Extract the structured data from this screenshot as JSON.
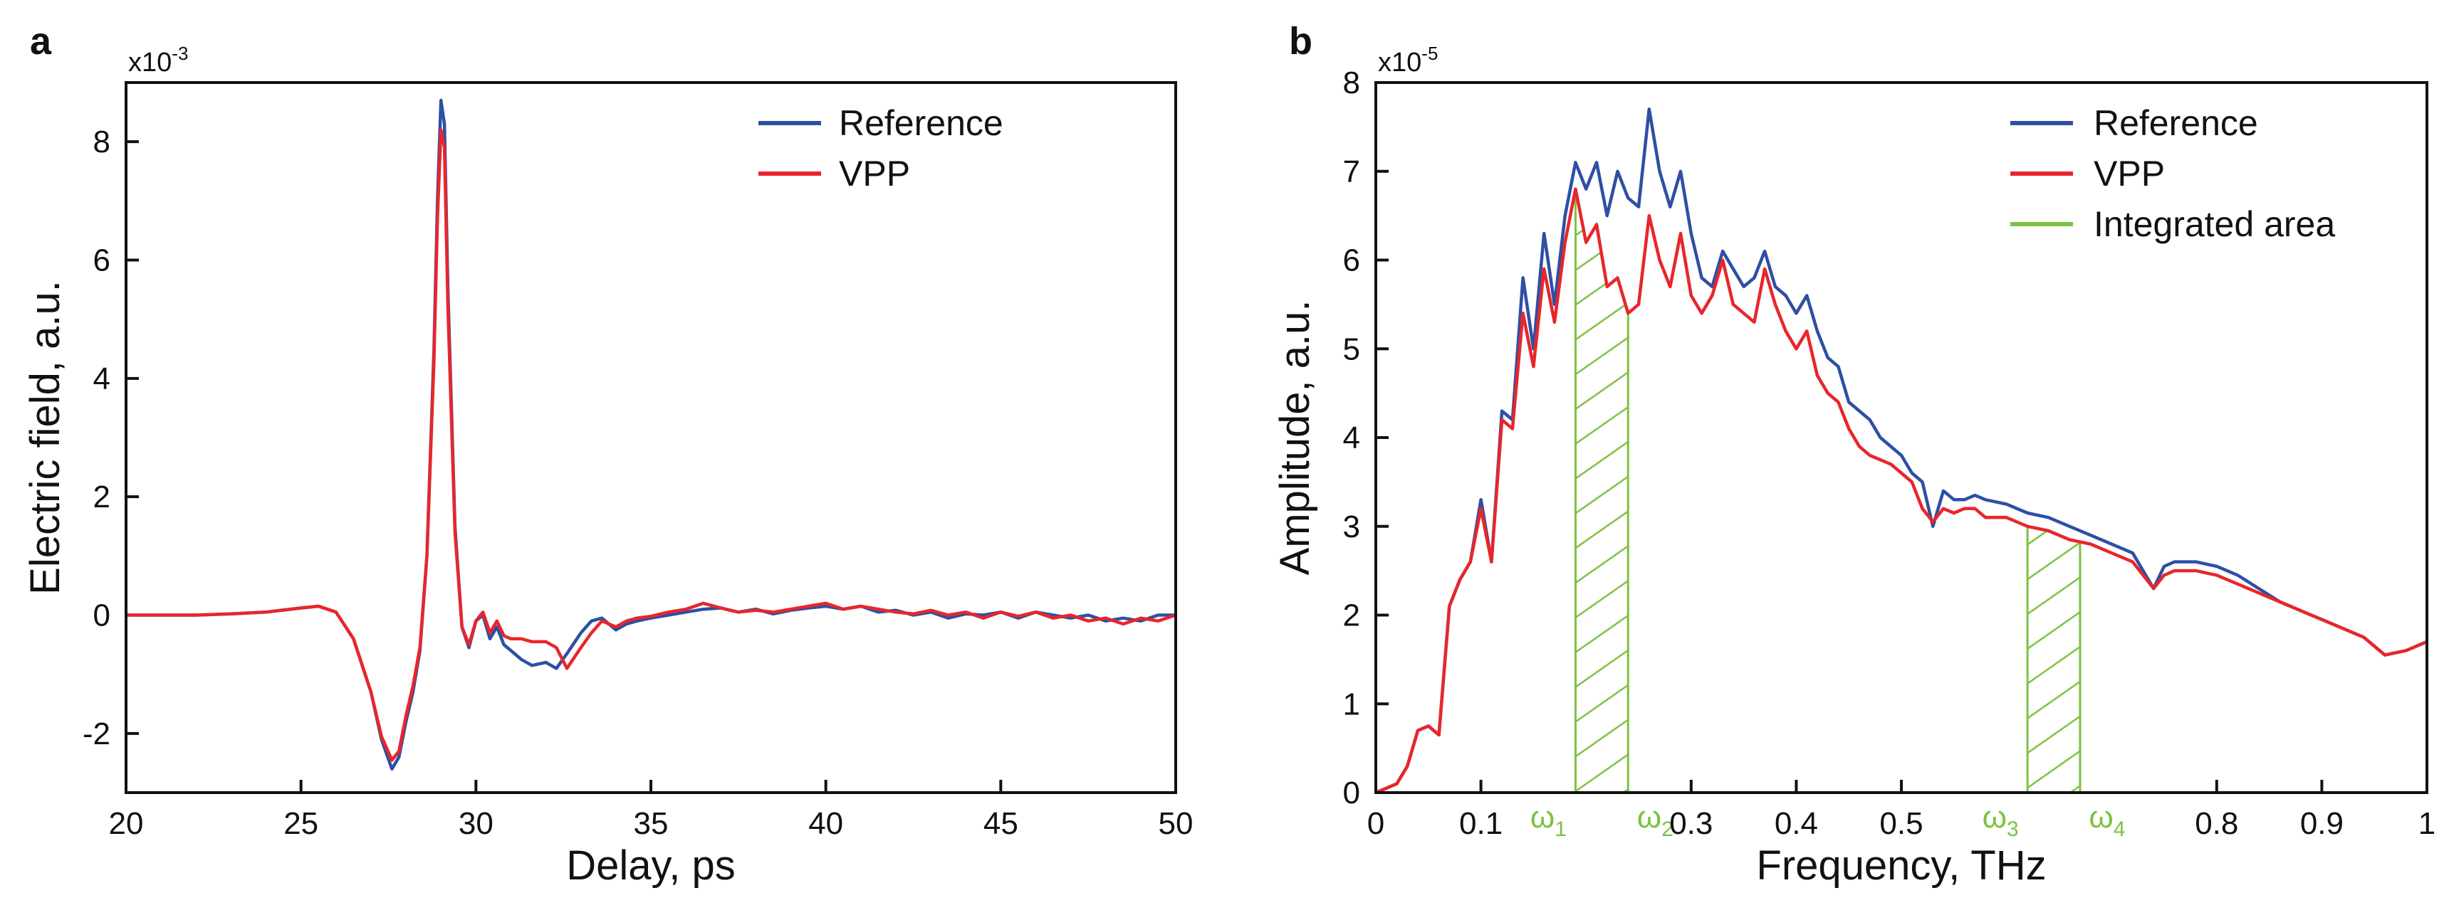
{
  "chart_data": [
    {
      "panel_label": "a",
      "type": "line",
      "xlabel": "Delay, ps",
      "ylabel": "Electric field, a.u.",
      "exponent_base": "x10",
      "exponent_power": "-3",
      "xlim": [
        20,
        50
      ],
      "ylim": [
        -3,
        9
      ],
      "xticks": [
        20,
        25,
        30,
        35,
        40,
        45,
        50
      ],
      "yticks": [
        -2,
        0,
        2,
        4,
        6,
        8
      ],
      "legend": "top-right",
      "series": [
        {
          "name": "Reference",
          "color": "#2e4fa3",
          "x": [
            20,
            21,
            22,
            23,
            24,
            25,
            25.5,
            26,
            26.5,
            27,
            27.3,
            27.6,
            27.8,
            28,
            28.2,
            28.4,
            28.6,
            28.8,
            28.9,
            29,
            29.1,
            29.2,
            29.4,
            29.6,
            29.8,
            30,
            30.2,
            30.4,
            30.6,
            30.8,
            31,
            31.3,
            31.6,
            32,
            32.3,
            32.6,
            33,
            33.3,
            33.6,
            34,
            34.3,
            34.6,
            35,
            35.5,
            36,
            36.5,
            37,
            37.5,
            38,
            38.5,
            39,
            39.5,
            40,
            40.5,
            41,
            41.5,
            42,
            42.5,
            43,
            43.5,
            44,
            44.5,
            45,
            45.5,
            46,
            46.5,
            47,
            47.5,
            48,
            48.5,
            49,
            49.5,
            50
          ],
          "values": [
            0,
            0,
            0,
            0.02,
            0.05,
            0.12,
            0.15,
            0.05,
            -0.4,
            -1.3,
            -2.1,
            -2.6,
            -2.4,
            -1.8,
            -1.3,
            -0.6,
            1,
            4.5,
            7,
            8.7,
            8.3,
            5.5,
            1.5,
            -0.2,
            -0.55,
            -0.1,
            0,
            -0.4,
            -0.2,
            -0.5,
            -0.6,
            -0.75,
            -0.85,
            -0.8,
            -0.9,
            -0.65,
            -0.3,
            -0.1,
            -0.05,
            -0.25,
            -0.15,
            -0.1,
            -0.05,
            0,
            0.05,
            0.1,
            0.12,
            0.05,
            0.1,
            0.02,
            0.08,
            0.12,
            0.15,
            0.1,
            0.15,
            0.05,
            0.08,
            0,
            0.05,
            -0.05,
            0.02,
            0,
            0.05,
            -0.05,
            0.05,
            0,
            -0.05,
            0,
            -0.1,
            -0.05,
            -0.1,
            0,
            0
          ]
        },
        {
          "name": "VPP",
          "color": "#e8262b",
          "x": [
            20,
            21,
            22,
            23,
            24,
            25,
            25.5,
            26,
            26.5,
            27,
            27.3,
            27.6,
            27.8,
            28,
            28.2,
            28.4,
            28.6,
            28.8,
            28.9,
            29,
            29.1,
            29.2,
            29.4,
            29.6,
            29.8,
            30,
            30.2,
            30.4,
            30.6,
            30.8,
            31,
            31.3,
            31.6,
            32,
            32.3,
            32.6,
            33,
            33.3,
            33.6,
            34,
            34.3,
            34.6,
            35,
            35.5,
            36,
            36.5,
            37,
            37.5,
            38,
            38.5,
            39,
            39.5,
            40,
            40.5,
            41,
            41.5,
            42,
            42.5,
            43,
            43.5,
            44,
            44.5,
            45,
            45.5,
            46,
            46.5,
            47,
            47.5,
            48,
            48.5,
            49,
            49.5,
            50
          ],
          "values": [
            0,
            0,
            0,
            0.02,
            0.05,
            0.12,
            0.15,
            0.05,
            -0.4,
            -1.3,
            -2.05,
            -2.45,
            -2.3,
            -1.7,
            -1.2,
            -0.55,
            1,
            4.3,
            6.7,
            8.2,
            7.9,
            5.2,
            1.4,
            -0.2,
            -0.5,
            -0.1,
            0.05,
            -0.3,
            -0.1,
            -0.35,
            -0.4,
            -0.4,
            -0.45,
            -0.45,
            -0.55,
            -0.9,
            -0.55,
            -0.3,
            -0.1,
            -0.2,
            -0.1,
            -0.05,
            -0.02,
            0.05,
            0.1,
            0.2,
            0.12,
            0.05,
            0.08,
            0.05,
            0.1,
            0.15,
            0.2,
            0.1,
            0.15,
            0.1,
            0.05,
            0.02,
            0.08,
            0,
            0.05,
            -0.05,
            0.05,
            -0.02,
            0.05,
            -0.05,
            0,
            -0.1,
            -0.05,
            -0.15,
            -0.05,
            -0.1,
            0
          ]
        }
      ]
    },
    {
      "panel_label": "b",
      "type": "line",
      "xlabel": "Frequency, THz",
      "ylabel": "Amplitude, a.u.",
      "exponent_base": "x10",
      "exponent_power": "-5",
      "xlim": [
        0,
        1
      ],
      "ylim": [
        0,
        8
      ],
      "xticks": [
        0,
        0.1,
        0.3,
        0.4,
        0.5,
        0.8,
        0.9,
        1
      ],
      "xtick_labels": [
        "0",
        "0.1",
        "0.3",
        "0.4",
        "0.5",
        "0.8",
        "0.9",
        "1"
      ],
      "yticks": [
        0,
        1,
        2,
        3,
        4,
        5,
        6,
        7,
        8
      ],
      "legend": "top-right",
      "series": [
        {
          "name": "Reference",
          "color": "#2e4fa3",
          "x": [
            0,
            0.01,
            0.02,
            0.03,
            0.04,
            0.05,
            0.06,
            0.07,
            0.08,
            0.09,
            0.1,
            0.11,
            0.12,
            0.13,
            0.14,
            0.15,
            0.16,
            0.17,
            0.18,
            0.19,
            0.2,
            0.21,
            0.22,
            0.23,
            0.24,
            0.25,
            0.26,
            0.27,
            0.28,
            0.29,
            0.3,
            0.31,
            0.32,
            0.33,
            0.34,
            0.35,
            0.36,
            0.37,
            0.38,
            0.39,
            0.4,
            0.41,
            0.42,
            0.43,
            0.44,
            0.45,
            0.46,
            0.47,
            0.48,
            0.49,
            0.5,
            0.51,
            0.52,
            0.53,
            0.54,
            0.55,
            0.56,
            0.57,
            0.58,
            0.6,
            0.62,
            0.64,
            0.66,
            0.68,
            0.7,
            0.72,
            0.74,
            0.75,
            0.76,
            0.78,
            0.8,
            0.82,
            0.84,
            0.86,
            0.88,
            0.9,
            0.92,
            0.94,
            0.96,
            0.98,
            0.99,
            1
          ],
          "values": [
            0,
            0.05,
            0.1,
            0.3,
            0.7,
            0.75,
            0.65,
            2.1,
            2.4,
            2.6,
            3.3,
            2.6,
            4.3,
            4.2,
            5.8,
            5,
            6.3,
            5.5,
            6.5,
            7.1,
            6.8,
            7.1,
            6.5,
            7,
            6.7,
            6.6,
            7.7,
            7,
            6.6,
            7,
            6.3,
            5.8,
            5.7,
            6.1,
            5.9,
            5.7,
            5.8,
            6.1,
            5.7,
            5.6,
            5.4,
            5.6,
            5.2,
            4.9,
            4.8,
            4.4,
            4.3,
            4.2,
            4,
            3.9,
            3.8,
            3.6,
            3.5,
            3,
            3.4,
            3.3,
            3.3,
            3.35,
            3.3,
            3.25,
            3.15,
            3.1,
            3,
            2.9,
            2.8,
            2.7,
            2.3,
            2.55,
            2.6,
            2.6,
            2.55,
            2.45,
            2.3,
            2.15,
            2.05,
            1.95,
            1.85,
            1.75,
            1.55,
            1.6,
            1.65,
            1.7
          ]
        },
        {
          "name": "VPP",
          "color": "#e8262b",
          "x": [
            0,
            0.01,
            0.02,
            0.03,
            0.04,
            0.05,
            0.06,
            0.07,
            0.08,
            0.09,
            0.1,
            0.11,
            0.12,
            0.13,
            0.14,
            0.15,
            0.16,
            0.17,
            0.18,
            0.19,
            0.2,
            0.21,
            0.22,
            0.23,
            0.24,
            0.25,
            0.26,
            0.27,
            0.28,
            0.29,
            0.3,
            0.31,
            0.32,
            0.33,
            0.34,
            0.35,
            0.36,
            0.37,
            0.38,
            0.39,
            0.4,
            0.41,
            0.42,
            0.43,
            0.44,
            0.45,
            0.46,
            0.47,
            0.48,
            0.49,
            0.5,
            0.51,
            0.52,
            0.53,
            0.54,
            0.55,
            0.56,
            0.57,
            0.58,
            0.6,
            0.62,
            0.64,
            0.66,
            0.68,
            0.7,
            0.72,
            0.74,
            0.75,
            0.76,
            0.78,
            0.8,
            0.82,
            0.84,
            0.86,
            0.88,
            0.9,
            0.92,
            0.94,
            0.96,
            0.98,
            0.99,
            1
          ],
          "values": [
            0,
            0.05,
            0.1,
            0.3,
            0.7,
            0.75,
            0.65,
            2.1,
            2.4,
            2.6,
            3.2,
            2.6,
            4.2,
            4.1,
            5.4,
            4.8,
            5.9,
            5.3,
            6.2,
            6.8,
            6.2,
            6.4,
            5.7,
            5.8,
            5.4,
            5.5,
            6.5,
            6,
            5.7,
            6.3,
            5.6,
            5.4,
            5.6,
            6,
            5.5,
            5.4,
            5.3,
            5.9,
            5.5,
            5.2,
            5,
            5.2,
            4.7,
            4.5,
            4.4,
            4.1,
            3.9,
            3.8,
            3.75,
            3.7,
            3.6,
            3.5,
            3.2,
            3.05,
            3.2,
            3.15,
            3.2,
            3.2,
            3.1,
            3.1,
            3,
            2.95,
            2.85,
            2.8,
            2.7,
            2.6,
            2.3,
            2.45,
            2.5,
            2.5,
            2.45,
            2.35,
            2.25,
            2.15,
            2.05,
            1.95,
            1.85,
            1.75,
            1.55,
            1.6,
            1.65,
            1.7
          ]
        }
      ],
      "integrated_area": {
        "legend_label": "Integrated area",
        "color": "#7dc142",
        "regions": [
          {
            "x_start": 0.19,
            "x_end": 0.24,
            "label_start_base": "ω",
            "label_start_sub": "1",
            "label_end_base": "ω",
            "label_end_sub": "2"
          },
          {
            "x_start": 0.62,
            "x_end": 0.67,
            "label_start_base": "ω",
            "label_start_sub": "3",
            "label_end_base": "ω",
            "label_end_sub": "4"
          }
        ]
      }
    }
  ]
}
